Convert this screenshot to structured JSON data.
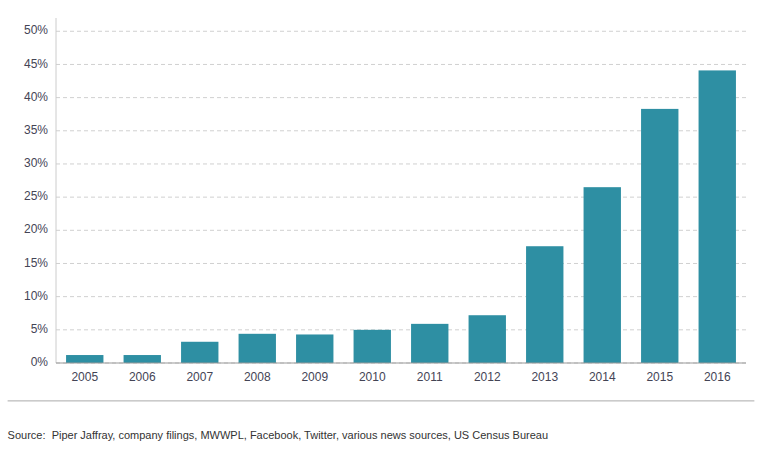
{
  "chart_data": {
    "type": "bar",
    "categories": [
      "2005",
      "2006",
      "2007",
      "2008",
      "2009",
      "2010",
      "2011",
      "2012",
      "2013",
      "2014",
      "2015",
      "2016"
    ],
    "values": [
      0.012,
      0.012,
      0.032,
      0.044,
      0.043,
      0.05,
      0.059,
      0.072,
      0.176,
      0.265,
      0.383,
      0.441
    ],
    "color": "#2e8fa3",
    "ylim": [
      0,
      0.52
    ],
    "yticks": [
      {
        "value": 0.0,
        "label": "0%"
      },
      {
        "value": 0.05,
        "label": "5%"
      },
      {
        "value": 0.1,
        "label": "10%"
      },
      {
        "value": 0.15,
        "label": "15%"
      },
      {
        "value": 0.2,
        "label": "20%"
      },
      {
        "value": 0.25,
        "label": "25%"
      },
      {
        "value": 0.3,
        "label": "30%"
      },
      {
        "value": 0.35,
        "label": "35%"
      },
      {
        "value": 0.4,
        "label": "40%"
      },
      {
        "value": 0.45,
        "label": "45%"
      },
      {
        "value": 0.5,
        "label": "50%"
      }
    ],
    "grid": true,
    "annotations": [
      "Source:  Piper Jaffray, company filings, MWWPL, Facebook, Twitter, various news sources, US Census Bureau"
    ]
  }
}
